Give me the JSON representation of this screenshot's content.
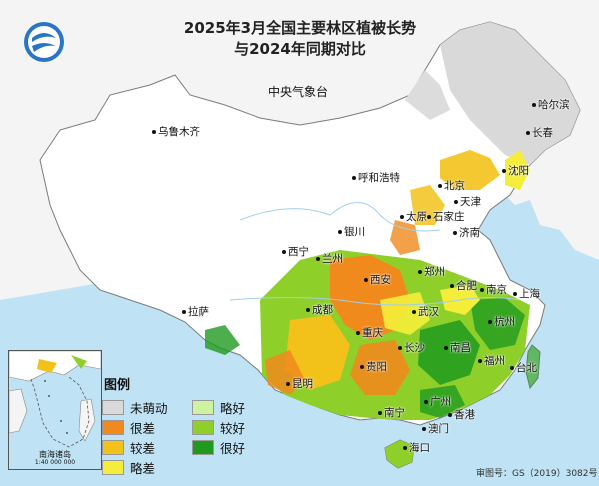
{
  "title": {
    "line1": "2025年3月全国主要林区植被长势",
    "line2": "与2024年同期对比"
  },
  "agency": "中央气象台",
  "cities": [
    {
      "id": "urumqi",
      "name": "乌鲁木齐"
    },
    {
      "id": "harbin",
      "name": "哈尔滨"
    },
    {
      "id": "changchun",
      "name": "长春"
    },
    {
      "id": "shenyang",
      "name": "沈阳"
    },
    {
      "id": "hohhot",
      "name": "呼和浩特"
    },
    {
      "id": "beijing",
      "name": "北京"
    },
    {
      "id": "tianjin",
      "name": "天津"
    },
    {
      "id": "taiyuan",
      "name": "太原"
    },
    {
      "id": "shijiazhuang",
      "name": "石家庄"
    },
    {
      "id": "jinan",
      "name": "济南"
    },
    {
      "id": "yinchuan",
      "name": "银川"
    },
    {
      "id": "xining",
      "name": "西宁"
    },
    {
      "id": "lanzhou",
      "name": "兰州"
    },
    {
      "id": "zhengzhou",
      "name": "郑州"
    },
    {
      "id": "xian",
      "name": "西安"
    },
    {
      "id": "hefei",
      "name": "合肥"
    },
    {
      "id": "nanjing",
      "name": "南京"
    },
    {
      "id": "shanghai",
      "name": "上海"
    },
    {
      "id": "lhasa",
      "name": "拉萨"
    },
    {
      "id": "chengdu",
      "name": "成都"
    },
    {
      "id": "wuhan",
      "name": "武汉"
    },
    {
      "id": "hangzhou",
      "name": "杭州"
    },
    {
      "id": "chongqing",
      "name": "重庆"
    },
    {
      "id": "changsha",
      "name": "长沙"
    },
    {
      "id": "nanchang",
      "name": "南昌"
    },
    {
      "id": "fuzhou",
      "name": "福州"
    },
    {
      "id": "guiyang",
      "name": "贵阳"
    },
    {
      "id": "kunming",
      "name": "昆明"
    },
    {
      "id": "taibei",
      "name": "台北"
    },
    {
      "id": "nanning",
      "name": "南宁"
    },
    {
      "id": "guangzhou",
      "name": "广州"
    },
    {
      "id": "hongkong",
      "name": "香港"
    },
    {
      "id": "macau",
      "name": "澳门"
    },
    {
      "id": "haikou",
      "name": "海口"
    }
  ],
  "legend": {
    "title": "图例",
    "items": [
      {
        "label": "未萌动",
        "color": "#d9d9d9"
      },
      {
        "label": "很差",
        "color": "#f08a1c"
      },
      {
        "label": "较差",
        "color": "#f2c21a"
      },
      {
        "label": "略差",
        "color": "#f4ee3a"
      },
      {
        "label": "略好",
        "color": "#cdf3a0"
      },
      {
        "label": "较好",
        "color": "#8fcf2a"
      },
      {
        "label": "很好",
        "color": "#1f9a1f"
      }
    ]
  },
  "inset": {
    "label": "南海诸岛",
    "scale": "1:40 000 000"
  },
  "approval_number": "审图号：GS（2019）3082号",
  "colors": {
    "sea": "#bfe3f5",
    "land": "#ffffff",
    "border": "#7a7a7a"
  }
}
